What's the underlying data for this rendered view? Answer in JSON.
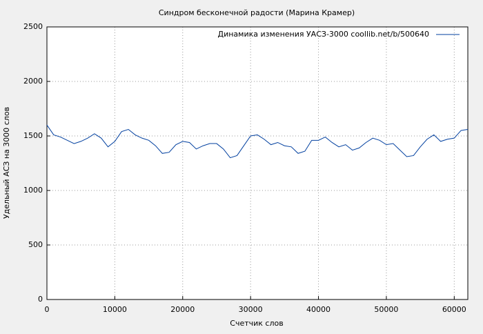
{
  "chart_data": {
    "type": "line",
    "title": "Синдром бесконечной радости (Марина Крамер)",
    "x_label": "Счетчик слов",
    "y_label": "Удельный АСЗ на 3000  слов",
    "x": [
      0,
      1000,
      2000,
      3000,
      4000,
      5000,
      6000,
      7000,
      8000,
      9000,
      10000,
      11000,
      12000,
      13000,
      14000,
      15000,
      16000,
      17000,
      18000,
      19000,
      20000,
      21000,
      22000,
      23000,
      24000,
      25000,
      26000,
      27000,
      28000,
      29000,
      30000,
      31000,
      32000,
      33000,
      34000,
      35000,
      36000,
      37000,
      38000,
      39000,
      40000,
      41000,
      42000,
      43000,
      44000,
      45000,
      46000,
      47000,
      48000,
      49000,
      50000,
      51000,
      52000,
      53000,
      54000,
      55000,
      56000,
      57000,
      58000,
      59000,
      60000,
      61000,
      62000
    ],
    "series": [
      {
        "name": "Динамика изменения УАСЗ-3000  coollib.net/b/500640",
        "color": "#003f9f",
        "values": [
          1600,
          1510,
          1490,
          1460,
          1430,
          1450,
          1480,
          1520,
          1480,
          1400,
          1450,
          1540,
          1560,
          1510,
          1480,
          1460,
          1410,
          1340,
          1350,
          1420,
          1450,
          1440,
          1380,
          1410,
          1430,
          1430,
          1380,
          1300,
          1320,
          1410,
          1500,
          1510,
          1470,
          1420,
          1440,
          1410,
          1400,
          1340,
          1360,
          1460,
          1460,
          1490,
          1440,
          1400,
          1420,
          1370,
          1390,
          1440,
          1480,
          1460,
          1420,
          1430,
          1370,
          1310,
          1320,
          1400,
          1470,
          1510,
          1450,
          1470,
          1480,
          1550,
          1560
        ]
      }
    ],
    "xlim": [
      0,
      62000
    ],
    "ylim": [
      0,
      2500
    ],
    "xticks": [
      0,
      10000,
      20000,
      30000,
      40000,
      50000,
      60000
    ],
    "yticks": [
      0,
      500,
      1000,
      1500,
      2000,
      2500
    ],
    "grid": true,
    "legend": "top-right"
  }
}
